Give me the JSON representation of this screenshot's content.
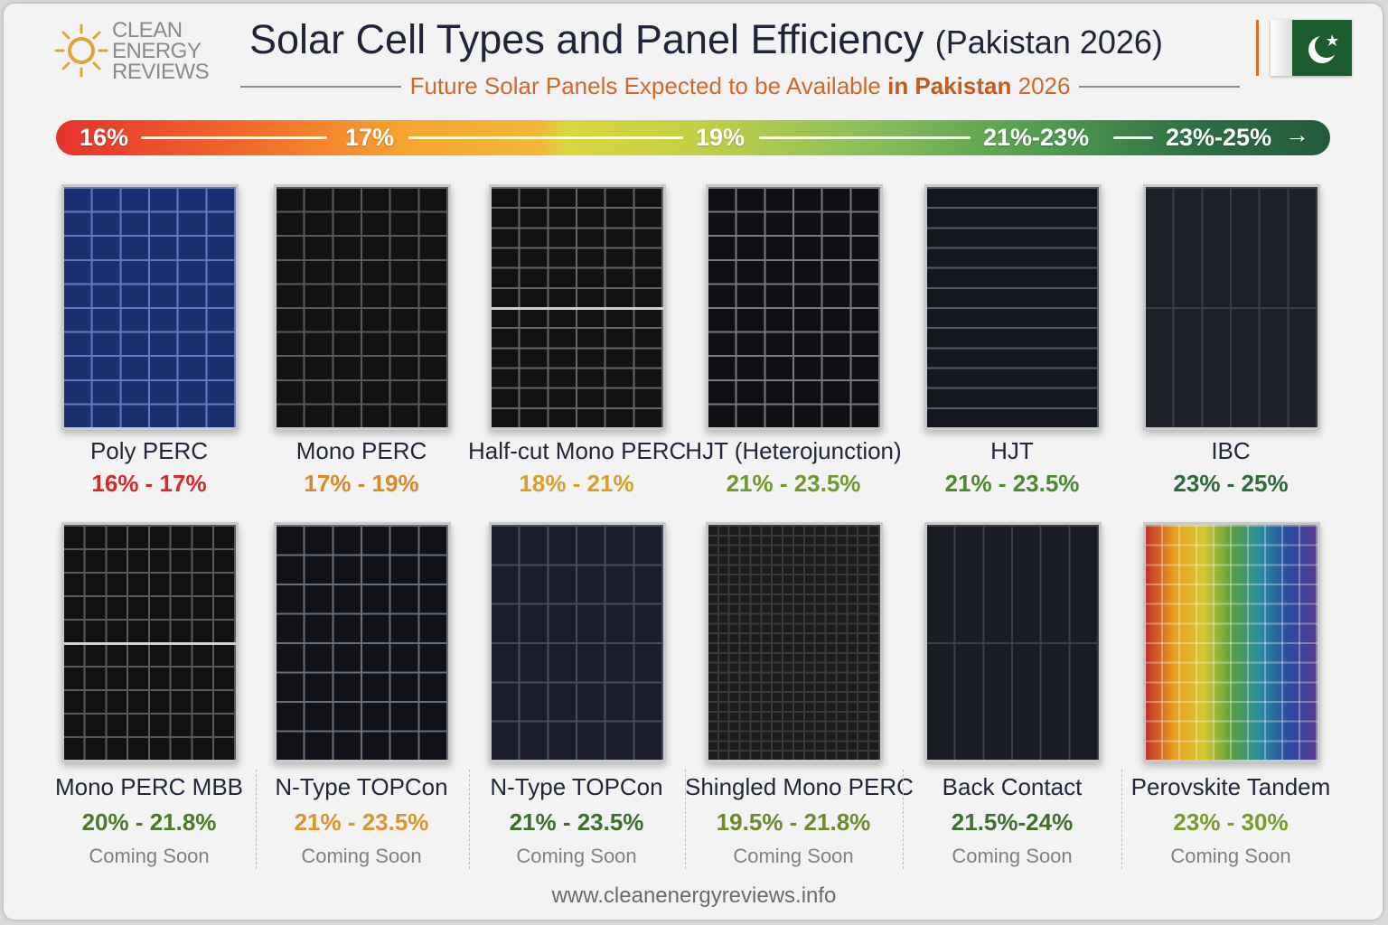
{
  "logo": {
    "line1": "CLEAN",
    "line2": "ENERGY",
    "line3": "REVIEWS",
    "icon": "sun-icon"
  },
  "header": {
    "title": "Solar Cell Types and Panel Efficiency",
    "title_suffix": "(Pakistan 2026)",
    "subtitle_pre": "Future Solar Panels Expected to be Available",
    "subtitle_bold": "in Pakistan",
    "subtitle_post": "2026",
    "flag": "pakistan-flag-icon"
  },
  "efficiency_scale": [
    "16%",
    "17%",
    "19%",
    "21%-23%",
    "23%-25%"
  ],
  "colors": {
    "red": "#d8282a",
    "orange": "#d98a2a",
    "gold": "#c99a30",
    "lightgreen": "#6e9a2c",
    "green": "#4a8a2e",
    "darkgreen": "#2f6a36"
  },
  "row1": [
    {
      "name": "Poly PERC",
      "range": "16% - 17%",
      "color": "#d8282a"
    },
    {
      "name": "Mono PERC",
      "range": "17% - 19%",
      "color": "#d98a2a"
    },
    {
      "name": "Half-cut Mono PERC",
      "range": "18% - 21%",
      "color": "#d9a030"
    },
    {
      "name": "HJT (Heterojunction)",
      "range": "21% - 23.5%",
      "color": "#6e9a2c"
    },
    {
      "name": "HJT",
      "range": "21% - 23.5%",
      "color": "#4a8a2e"
    },
    {
      "name": "IBC",
      "range": "23% - 25%",
      "color": "#2f6a36"
    }
  ],
  "row2": [
    {
      "name": "Mono PERC MBB",
      "range": "20% - 21.8%",
      "color": "#4a7a2a",
      "status": "Coming Soon"
    },
    {
      "name": "N-Type TOPCon",
      "range": "21% - 23.5%",
      "color": "#d9952e",
      "status": "Coming Soon"
    },
    {
      "name": "N-Type TOPCon",
      "range": "21% - 23.5%",
      "color": "#3f6e30",
      "status": "Coming Soon"
    },
    {
      "name": "Shingled Mono PERC",
      "range": "19.5% - 21.8%",
      "color": "#6e8a2c",
      "status": "Coming Soon"
    },
    {
      "name": "Back Contact",
      "range": "21.5%-24%",
      "color": "#3f6e30",
      "status": "Coming Soon"
    },
    {
      "name": "Perovskite Tandem",
      "range": "23% - 30%",
      "color": "#7a9a30",
      "status": "Coming Soon"
    }
  ],
  "footer": "www.cleanenergyreviews.info"
}
